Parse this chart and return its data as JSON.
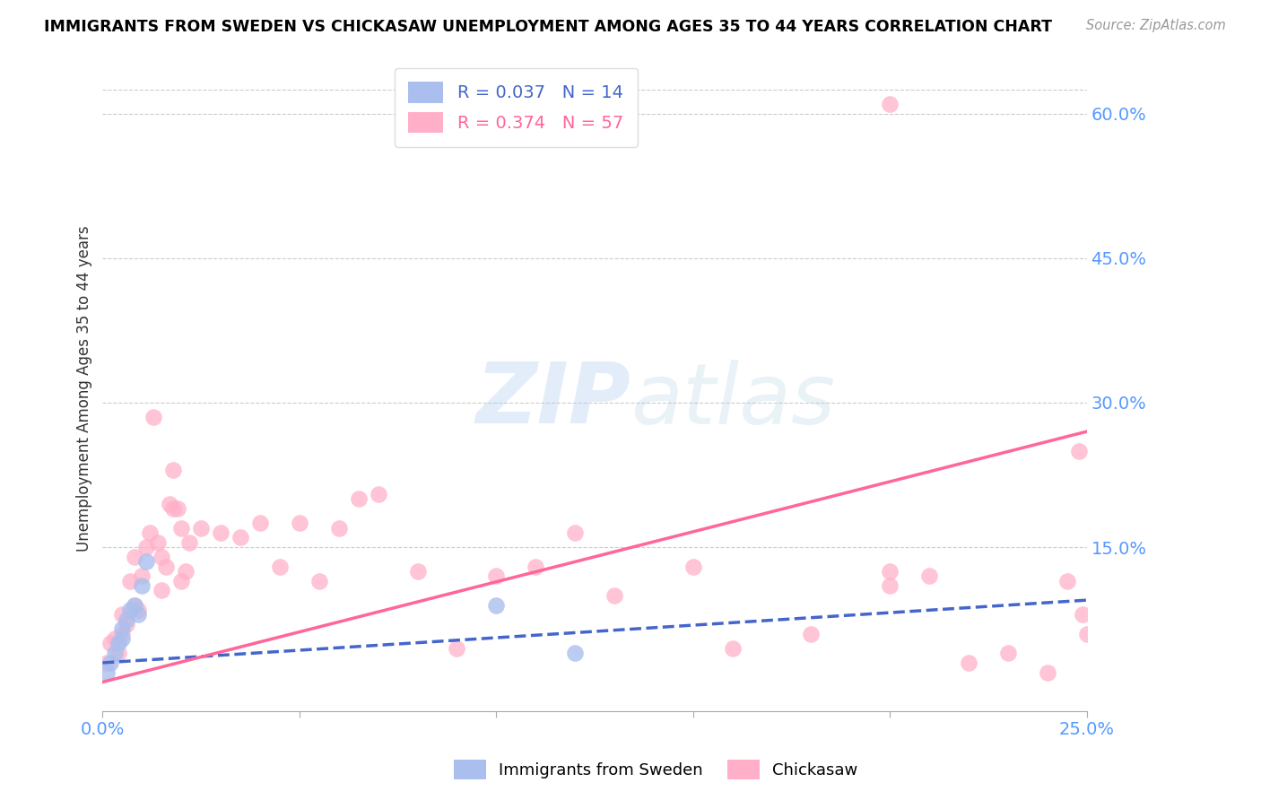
{
  "title": "IMMIGRANTS FROM SWEDEN VS CHICKASAW UNEMPLOYMENT AMONG AGES 35 TO 44 YEARS CORRELATION CHART",
  "source": "Source: ZipAtlas.com",
  "ylabel": "Unemployment Among Ages 35 to 44 years",
  "xlim": [
    0.0,
    0.25
  ],
  "ylim": [
    -0.02,
    0.65
  ],
  "yticks_right": [
    0.15,
    0.3,
    0.45,
    0.6
  ],
  "ytick_labels_right": [
    "15.0%",
    "30.0%",
    "45.0%",
    "60.0%"
  ],
  "sweden_R": 0.037,
  "sweden_N": 14,
  "chickasaw_R": 0.374,
  "chickasaw_N": 57,
  "sweden_color": "#AABFEE",
  "chickasaw_color": "#FFB0C8",
  "sweden_line_color": "#4466CC",
  "chickasaw_line_color": "#FF6699",
  "grid_color": "#CCCCCC",
  "background_color": "#FFFFFF",
  "axis_label_color": "#5599FF",
  "sweden_x": [
    0.001,
    0.002,
    0.003,
    0.004,
    0.005,
    0.005,
    0.006,
    0.007,
    0.008,
    0.009,
    0.01,
    0.011,
    0.1,
    0.12
  ],
  "sweden_y": [
    0.02,
    0.03,
    0.04,
    0.05,
    0.055,
    0.065,
    0.075,
    0.085,
    0.09,
    0.08,
    0.11,
    0.135,
    0.09,
    0.04
  ],
  "chickasaw_x": [
    0.001,
    0.002,
    0.003,
    0.004,
    0.005,
    0.005,
    0.006,
    0.007,
    0.008,
    0.008,
    0.009,
    0.01,
    0.011,
    0.012,
    0.013,
    0.014,
    0.015,
    0.015,
    0.016,
    0.017,
    0.018,
    0.018,
    0.019,
    0.02,
    0.02,
    0.021,
    0.022,
    0.025,
    0.03,
    0.035,
    0.04,
    0.045,
    0.05,
    0.055,
    0.06,
    0.065,
    0.07,
    0.08,
    0.09,
    0.1,
    0.11,
    0.12,
    0.13,
    0.15,
    0.16,
    0.18,
    0.2,
    0.2,
    0.2,
    0.21,
    0.22,
    0.23,
    0.24,
    0.245,
    0.248,
    0.249,
    0.25
  ],
  "chickasaw_y": [
    0.03,
    0.05,
    0.055,
    0.04,
    0.06,
    0.08,
    0.07,
    0.115,
    0.09,
    0.14,
    0.085,
    0.12,
    0.15,
    0.165,
    0.285,
    0.155,
    0.14,
    0.105,
    0.13,
    0.195,
    0.23,
    0.19,
    0.19,
    0.115,
    0.17,
    0.125,
    0.155,
    0.17,
    0.165,
    0.16,
    0.175,
    0.13,
    0.175,
    0.115,
    0.17,
    0.2,
    0.205,
    0.125,
    0.045,
    0.12,
    0.13,
    0.165,
    0.1,
    0.13,
    0.045,
    0.06,
    0.125,
    0.61,
    0.11,
    0.12,
    0.03,
    0.04,
    0.02,
    0.115,
    0.25,
    0.08,
    0.06
  ],
  "sweden_trend_x0": 0.0,
  "sweden_trend_y0": 0.03,
  "sweden_trend_x1": 0.25,
  "sweden_trend_y1": 0.095,
  "chickasaw_trend_x0": 0.0,
  "chickasaw_trend_y0": 0.01,
  "chickasaw_trend_x1": 0.25,
  "chickasaw_trend_y1": 0.27
}
